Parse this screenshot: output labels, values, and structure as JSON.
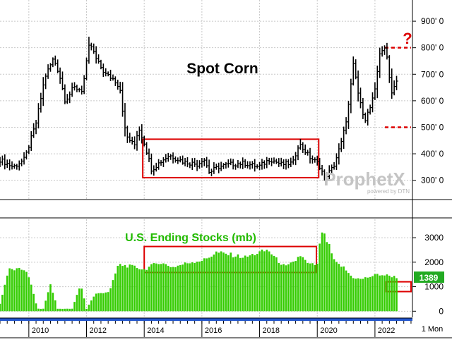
{
  "colors": {
    "price_bar": "#000000",
    "stocks_bar": "#33cc00",
    "highlight_box": "#dd0000",
    "target_line": "#dd0000",
    "stocks_label": "#22bb00",
    "last_value_bg": "#22aa22",
    "grid": "#c8c8c8"
  },
  "watermark": {
    "brand": "ProphetX",
    "tagline": "powered by DTN"
  },
  "footer": {
    "timeframe": "1 Mon"
  },
  "chart_data": [
    {
      "type": "ohlc",
      "title": "Spot Corn",
      "interval": "monthly",
      "y_ticks": [
        "300' 0",
        "400' 0",
        "500' 0",
        "600' 0",
        "700' 0",
        "800' 0",
        "900' 0"
      ],
      "y_tick_values": [
        300,
        400,
        500,
        600,
        700,
        800,
        900
      ],
      "ylim": [
        230,
        980
      ],
      "xlim": [
        2009.0,
        2023.3
      ],
      "x_ticks": [
        "2010",
        "2012",
        "2014",
        "2016",
        "2018",
        "2020",
        "2022"
      ],
      "x_tick_values": [
        2010,
        2012,
        2014,
        2016,
        2018,
        2020,
        2022
      ],
      "annotations": [
        {
          "type": "dashed-level",
          "y": 800
        },
        {
          "type": "dashed-level",
          "y": 500
        },
        {
          "type": "question-mark",
          "text": "?"
        },
        {
          "type": "range-box",
          "x": [
            2013.95,
            2020.05
          ],
          "y": [
            310,
            455
          ]
        }
      ],
      "series": [
        {
          "closes": [
            {
              "x": 2009.0,
              "y": 380
            },
            {
              "x": 2009.5,
              "y": 350
            },
            {
              "x": 2009.9,
              "y": 380
            },
            {
              "x": 2010.3,
              "y": 520
            },
            {
              "x": 2010.6,
              "y": 690
            },
            {
              "x": 2010.9,
              "y": 760
            },
            {
              "x": 2011.1,
              "y": 700
            },
            {
              "x": 2011.3,
              "y": 600
            },
            {
              "x": 2011.6,
              "y": 650
            },
            {
              "x": 2011.9,
              "y": 640
            },
            {
              "x": 2012.15,
              "y": 820
            },
            {
              "x": 2012.4,
              "y": 750
            },
            {
              "x": 2012.7,
              "y": 700
            },
            {
              "x": 2013.0,
              "y": 680
            },
            {
              "x": 2013.2,
              "y": 650
            },
            {
              "x": 2013.4,
              "y": 470
            },
            {
              "x": 2013.7,
              "y": 430
            },
            {
              "x": 2013.85,
              "y": 500
            },
            {
              "x": 2014.05,
              "y": 440
            },
            {
              "x": 2014.3,
              "y": 340
            },
            {
              "x": 2014.6,
              "y": 370
            },
            {
              "x": 2014.9,
              "y": 395
            },
            {
              "x": 2015.4,
              "y": 370
            },
            {
              "x": 2015.9,
              "y": 360
            },
            {
              "x": 2016.1,
              "y": 385
            },
            {
              "x": 2016.3,
              "y": 330
            },
            {
              "x": 2016.6,
              "y": 350
            },
            {
              "x": 2017.0,
              "y": 360
            },
            {
              "x": 2017.5,
              "y": 365
            },
            {
              "x": 2018.0,
              "y": 350
            },
            {
              "x": 2018.4,
              "y": 380
            },
            {
              "x": 2018.8,
              "y": 360
            },
            {
              "x": 2019.2,
              "y": 365
            },
            {
              "x": 2019.4,
              "y": 440
            },
            {
              "x": 2019.8,
              "y": 385
            },
            {
              "x": 2020.1,
              "y": 360
            },
            {
              "x": 2020.3,
              "y": 310
            },
            {
              "x": 2020.6,
              "y": 350
            },
            {
              "x": 2020.9,
              "y": 450
            },
            {
              "x": 2021.1,
              "y": 560
            },
            {
              "x": 2021.3,
              "y": 740
            },
            {
              "x": 2021.5,
              "y": 600
            },
            {
              "x": 2021.7,
              "y": 530
            },
            {
              "x": 2021.9,
              "y": 580
            },
            {
              "x": 2022.05,
              "y": 640
            },
            {
              "x": 2022.2,
              "y": 780
            },
            {
              "x": 2022.35,
              "y": 800
            },
            {
              "x": 2022.5,
              "y": 750
            },
            {
              "x": 2022.6,
              "y": 620
            },
            {
              "x": 2022.75,
              "y": 675
            }
          ]
        }
      ]
    },
    {
      "type": "bar",
      "title": "U.S. Ending Stocks (mb)",
      "y_ticks": [
        "0",
        "1000",
        "2000",
        "3000"
      ],
      "y_tick_values": [
        0,
        1000,
        2000,
        3000
      ],
      "ylim": [
        -250,
        3750
      ],
      "xlim": [
        2009.0,
        2023.3
      ],
      "last_value": "1389",
      "annotations": [
        {
          "type": "range-box",
          "x": [
            2014.0,
            2019.97
          ],
          "y": [
            1580,
            2640
          ]
        },
        {
          "type": "value-box",
          "y": [
            800,
            1200
          ]
        }
      ],
      "series": [
        {
          "points": [
            {
              "x": 2009.0,
              "y": 300
            },
            {
              "x": 2009.3,
              "y": 1700
            },
            {
              "x": 2009.9,
              "y": 1700
            },
            {
              "x": 2010.1,
              "y": 1000
            },
            {
              "x": 2010.3,
              "y": 100
            },
            {
              "x": 2010.5,
              "y": 100
            },
            {
              "x": 2010.75,
              "y": 1100
            },
            {
              "x": 2011.0,
              "y": 100
            },
            {
              "x": 2011.5,
              "y": 100
            },
            {
              "x": 2011.8,
              "y": 1100
            },
            {
              "x": 2012.0,
              "y": 100
            },
            {
              "x": 2012.3,
              "y": 700
            },
            {
              "x": 2012.8,
              "y": 800
            },
            {
              "x": 2013.1,
              "y": 1900
            },
            {
              "x": 2013.7,
              "y": 1800
            },
            {
              "x": 2014.0,
              "y": 1700
            },
            {
              "x": 2014.5,
              "y": 2000
            },
            {
              "x": 2015.0,
              "y": 1800
            },
            {
              "x": 2015.6,
              "y": 2000
            },
            {
              "x": 2016.1,
              "y": 2100
            },
            {
              "x": 2016.5,
              "y": 2400
            },
            {
              "x": 2017.0,
              "y": 2300
            },
            {
              "x": 2017.5,
              "y": 2200
            },
            {
              "x": 2018.0,
              "y": 2400
            },
            {
              "x": 2018.3,
              "y": 2500
            },
            {
              "x": 2018.6,
              "y": 2100
            },
            {
              "x": 2018.9,
              "y": 1800
            },
            {
              "x": 2019.2,
              "y": 2000
            },
            {
              "x": 2019.4,
              "y": 2300
            },
            {
              "x": 2019.7,
              "y": 1900
            },
            {
              "x": 2020.0,
              "y": 1900
            },
            {
              "x": 2020.15,
              "y": 3300
            },
            {
              "x": 2020.4,
              "y": 2700
            },
            {
              "x": 2020.6,
              "y": 2000
            },
            {
              "x": 2020.9,
              "y": 1800
            },
            {
              "x": 2021.2,
              "y": 1400
            },
            {
              "x": 2021.5,
              "y": 1300
            },
            {
              "x": 2021.8,
              "y": 1400
            },
            {
              "x": 2022.1,
              "y": 1500
            },
            {
              "x": 2022.5,
              "y": 1450
            },
            {
              "x": 2022.75,
              "y": 1389
            }
          ]
        }
      ]
    }
  ]
}
